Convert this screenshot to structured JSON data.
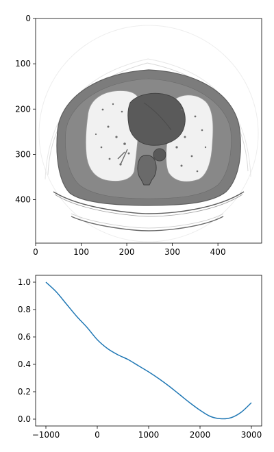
{
  "chart_data": [
    {
      "type": "image",
      "title": "",
      "xlabel": "",
      "ylabel": "",
      "xlim": [
        0,
        496
      ],
      "ylim": [
        496,
        0
      ],
      "xticks": [
        0,
        100,
        200,
        300,
        400
      ],
      "yticks": [
        0,
        100,
        200,
        300,
        400
      ],
      "colormap": "gray",
      "content": "axial chest CT slice"
    },
    {
      "type": "line",
      "title": "",
      "xlabel": "",
      "ylabel": "",
      "xlim": [
        -1200,
        3200
      ],
      "ylim": [
        -0.05,
        1.05
      ],
      "xticks": [
        -1000,
        0,
        1000,
        2000,
        3000
      ],
      "yticks": [
        0.0,
        0.2,
        0.4,
        0.6,
        0.8,
        1.0
      ],
      "xtick_labels": [
        "−1000",
        "0",
        "1000",
        "2000",
        "3000"
      ],
      "ytick_labels": [
        "0.0",
        "0.2",
        "0.4",
        "0.6",
        "0.8",
        "1.0"
      ],
      "line_color": "#1f77b4",
      "series": [
        {
          "x": [
            -1000,
            -800,
            -600,
            -400,
            -200,
            0,
            200,
            400,
            600,
            800,
            1000,
            1200,
            1400,
            1600,
            1800,
            2000,
            2200,
            2400,
            2600,
            2800,
            3000
          ],
          "y": [
            1.0,
            0.93,
            0.84,
            0.75,
            0.67,
            0.58,
            0.515,
            0.47,
            0.435,
            0.39,
            0.345,
            0.295,
            0.24,
            0.18,
            0.12,
            0.065,
            0.02,
            0.003,
            0.01,
            0.05,
            0.12
          ]
        }
      ]
    }
  ]
}
